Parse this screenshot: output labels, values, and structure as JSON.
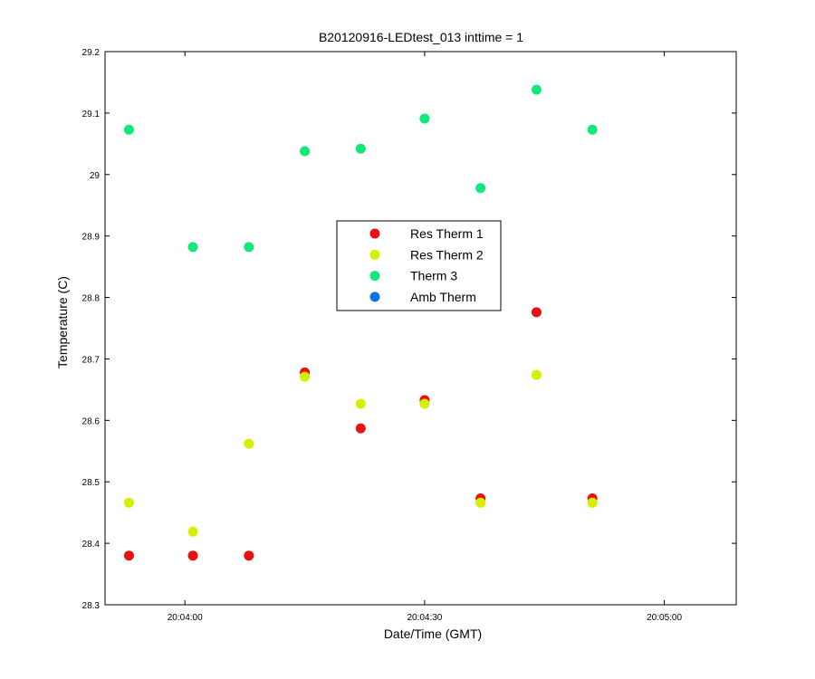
{
  "chart_data": {
    "type": "scatter",
    "title": "B20120916-LEDtest_013 inttime = 1",
    "xlabel": "Date/Time (GMT)",
    "ylabel": "Temperature (C)",
    "xlim": [
      "20:03:50",
      "20:05:09"
    ],
    "ylim": [
      28.3,
      29.2
    ],
    "x_ticks": [
      "20:04:00",
      "20:04:30",
      "20:05:00"
    ],
    "y_ticks": [
      "28.3",
      "28.4",
      "28.5",
      "28.6",
      "28.7",
      "28.8",
      "28.9",
      "29",
      "29.1",
      "29.2"
    ],
    "grid": false,
    "legend_position": "center",
    "series": [
      {
        "name": "Res Therm 1",
        "color": "#e81010",
        "x": [
          "20:03:53",
          "20:04:01",
          "20:04:08",
          "20:04:15",
          "20:04:22",
          "20:04:30",
          "20:04:37",
          "20:04:44",
          "20:04:51"
        ],
        "y": [
          28.38,
          28.38,
          28.38,
          28.678,
          28.587,
          28.633,
          28.473,
          28.776,
          28.473
        ]
      },
      {
        "name": "Res Therm 2",
        "color": "#d4f000",
        "x": [
          "20:03:53",
          "20:04:01",
          "20:04:08",
          "20:04:15",
          "20:04:22",
          "20:04:30",
          "20:04:37",
          "20:04:44",
          "20:04:51"
        ],
        "y": [
          28.466,
          28.419,
          28.562,
          28.671,
          28.627,
          28.627,
          28.466,
          28.674,
          28.466
        ]
      },
      {
        "name": "Therm 3",
        "color": "#10e878",
        "x": [
          "20:03:53",
          "20:04:01",
          "20:04:08",
          "20:04:15",
          "20:04:22",
          "20:04:30",
          "20:04:37",
          "20:04:44",
          "20:04:51"
        ],
        "y": [
          29.073,
          28.882,
          28.882,
          29.038,
          29.042,
          29.091,
          28.978,
          29.138,
          29.073
        ]
      },
      {
        "name": "Amb Therm",
        "color": "#1070e8",
        "x": [],
        "y": []
      }
    ]
  }
}
